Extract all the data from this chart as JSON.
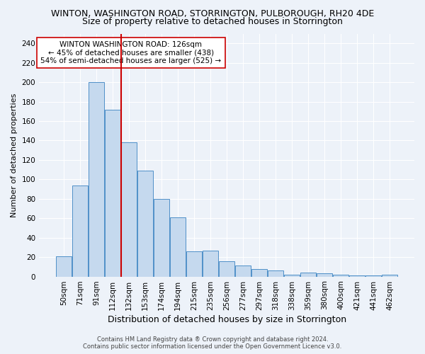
{
  "title": "WINTON, WASHINGTON ROAD, STORRINGTON, PULBOROUGH, RH20 4DE",
  "subtitle": "Size of property relative to detached houses in Storrington",
  "xlabel": "Distribution of detached houses by size in Storrington",
  "ylabel": "Number of detached properties",
  "footer_line1": "Contains HM Land Registry data ® Crown copyright and database right 2024.",
  "footer_line2": "Contains public sector information licensed under the Open Government Licence v3.0.",
  "categories": [
    "50sqm",
    "71sqm",
    "91sqm",
    "112sqm",
    "132sqm",
    "153sqm",
    "174sqm",
    "194sqm",
    "215sqm",
    "235sqm",
    "256sqm",
    "277sqm",
    "297sqm",
    "318sqm",
    "338sqm",
    "359sqm",
    "380sqm",
    "400sqm",
    "421sqm",
    "441sqm",
    "462sqm"
  ],
  "values": [
    21,
    94,
    200,
    172,
    138,
    109,
    80,
    61,
    26,
    27,
    16,
    11,
    8,
    6,
    2,
    4,
    3,
    2,
    1,
    1,
    2
  ],
  "bar_color": "#c5d9ee",
  "bar_edge_color": "#4f90c8",
  "red_line_color": "#cc0000",
  "annotation_title": "WINTON WASHINGTON ROAD: 126sqm",
  "annotation_line1": "← 45% of detached houses are smaller (438)",
  "annotation_line2": "54% of semi-detached houses are larger (525) →",
  "annotation_box_color": "white",
  "annotation_box_edge_color": "#cc0000",
  "ylim": [
    0,
    250
  ],
  "yticks": [
    0,
    20,
    40,
    60,
    80,
    100,
    120,
    140,
    160,
    180,
    200,
    220,
    240
  ],
  "bg_color": "#edf2f9",
  "plot_bg_color": "#edf2f9",
  "grid_color": "white",
  "title_fontsize": 9,
  "subtitle_fontsize": 9,
  "xlabel_fontsize": 9,
  "ylabel_fontsize": 8,
  "tick_fontsize": 7.5,
  "annotation_fontsize": 7.5,
  "footer_fontsize": 6,
  "red_line_index": 3.5
}
